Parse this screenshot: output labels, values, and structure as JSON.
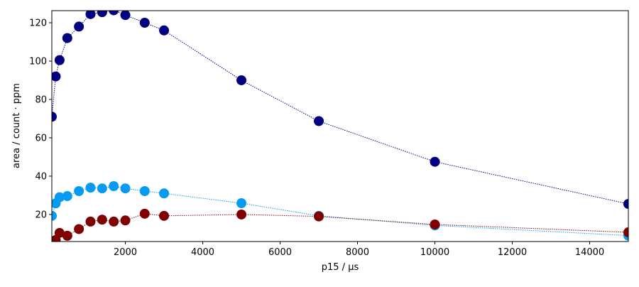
{
  "chart_data": {
    "type": "line",
    "xlabel": "p15 / µs",
    "ylabel": "area / count · ppm",
    "x": [
      100,
      200,
      300,
      500,
      800,
      1100,
      1400,
      1700,
      2000,
      2500,
      3000,
      5000,
      7000,
      10000,
      15000
    ],
    "series": [
      {
        "color": "#000080",
        "values": [
          71,
          92,
          100.5,
          112,
          118,
          124.5,
          125.5,
          126.5,
          124,
          120,
          116,
          90,
          68.7,
          47.5,
          25.5
        ]
      },
      {
        "color": "#069af3",
        "values": [
          19.3,
          25.8,
          29,
          29.6,
          32.2,
          34,
          33.6,
          34.8,
          33.6,
          32.2,
          31,
          25.9,
          19.3,
          14.3,
          9
        ]
      },
      {
        "color": "#800000",
        "values": [
          null,
          6.7,
          10.4,
          8.9,
          12.4,
          16.3,
          17.3,
          16.3,
          16.9,
          20.4,
          19.3,
          20,
          19,
          14.8,
          10.7
        ]
      }
    ],
    "xlim": [
      100,
      15000
    ],
    "ylim": [
      5.9,
      126.3
    ],
    "xticks": [
      2000,
      4000,
      6000,
      8000,
      10000,
      12000,
      14000
    ],
    "yticks": [
      20,
      40,
      60,
      80,
      100,
      120
    ]
  }
}
